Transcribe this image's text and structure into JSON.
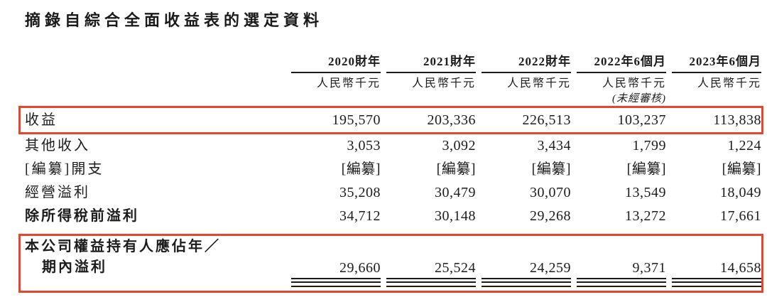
{
  "title": "摘錄自綜合全面收益表的選定資料",
  "highlight_color": "#e8462a",
  "table": {
    "columns": [
      {
        "period": "2020財年",
        "unit": "人民幣千元",
        "note": ""
      },
      {
        "period": "2021財年",
        "unit": "人民幣千元",
        "note": ""
      },
      {
        "period": "2022財年",
        "unit": "人民幣千元",
        "note": ""
      },
      {
        "period": "2022年6個月",
        "unit": "人民幣千元",
        "note": "(未經審核)"
      },
      {
        "period": "2023年6個月",
        "unit": "人民幣千元",
        "note": ""
      }
    ],
    "rows": [
      {
        "label": "收益",
        "values": [
          "195,570",
          "203,336",
          "226,513",
          "103,237",
          "113,838"
        ],
        "highlighted": true
      },
      {
        "label": "其他收入",
        "values": [
          "3,053",
          "3,092",
          "3,434",
          "1,799",
          "1,224"
        ]
      },
      {
        "label": "[編纂]開支",
        "values": [
          "[編纂]",
          "[編纂]",
          "[編纂]",
          "[編纂]",
          "[編纂]"
        ]
      },
      {
        "label": "經營溢利",
        "values": [
          "35,208",
          "30,479",
          "30,070",
          "13,549",
          "18,049"
        ]
      },
      {
        "label": "除所得稅前溢利",
        "values": [
          "34,712",
          "30,148",
          "29,268",
          "13,272",
          "17,661"
        ],
        "bold": true
      }
    ],
    "total_row": {
      "label_line1": "本公司權益持有人應佔年／",
      "label_line2": "期內溢利",
      "values": [
        "29,660",
        "25,524",
        "24,259",
        "9,371",
        "14,658"
      ],
      "highlighted": true,
      "double_underline": true
    }
  }
}
